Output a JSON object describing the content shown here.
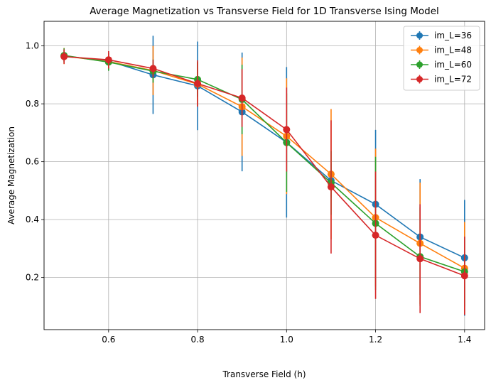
{
  "chart_data": {
    "type": "line",
    "title": "Average Magnetization vs Transverse Field for 1D Transverse Ising Model",
    "xlabel": "Transverse Field (h)",
    "ylabel": "Average Magnetization",
    "xlim": [
      0.455,
      1.445
    ],
    "ylim": [
      0.02,
      1.085
    ],
    "xticks": [
      0.6,
      0.8,
      1.0,
      1.2,
      1.4
    ],
    "xtick_labels": [
      "0.6",
      "0.8",
      "1.0",
      "1.2",
      "1.4"
    ],
    "yticks": [
      0.2,
      0.4,
      0.6,
      0.8,
      1.0
    ],
    "ytick_labels": [
      "0.2",
      "0.4",
      "0.6",
      "0.8",
      "1.0"
    ],
    "grid": true,
    "legend_position": "top-right",
    "x": [
      0.5,
      0.6,
      0.7,
      0.8,
      0.9,
      1.0,
      1.1,
      1.2,
      1.3,
      1.4
    ],
    "series": [
      {
        "name": "im_L=36",
        "color": "#1f77b4",
        "values": [
          0.965,
          0.948,
          0.9,
          0.862,
          0.772,
          0.667,
          0.535,
          0.453,
          0.34,
          0.268
        ],
        "errors": [
          0.02,
          0.03,
          0.135,
          0.153,
          0.205,
          0.26,
          0.06,
          0.257,
          0.2,
          0.2
        ]
      },
      {
        "name": "im_L=48",
        "color": "#ff7f0e",
        "values": [
          0.965,
          0.946,
          0.915,
          0.868,
          0.79,
          0.688,
          0.557,
          0.407,
          0.318,
          0.232
        ],
        "errors": [
          0.028,
          0.03,
          0.085,
          0.075,
          0.17,
          0.2,
          0.225,
          0.238,
          0.21,
          0.16
        ]
      },
      {
        "name": "im_L=60",
        "color": "#2ca02c",
        "values": [
          0.967,
          0.944,
          0.913,
          0.884,
          0.815,
          0.666,
          0.527,
          0.387,
          0.272,
          0.22
        ],
        "errors": [
          0.025,
          0.03,
          0.04,
          0.06,
          0.12,
          0.17,
          0.11,
          0.23,
          0.17,
          0.12
        ]
      },
      {
        "name": "im_L=72",
        "color": "#d62728",
        "values": [
          0.963,
          0.952,
          0.922,
          0.87,
          0.82,
          0.711,
          0.513,
          0.346,
          0.265,
          0.206
        ],
        "errors": [
          0.025,
          0.03,
          0.03,
          0.08,
          0.1,
          0.145,
          0.23,
          0.22,
          0.188,
          0.135
        ]
      }
    ]
  }
}
